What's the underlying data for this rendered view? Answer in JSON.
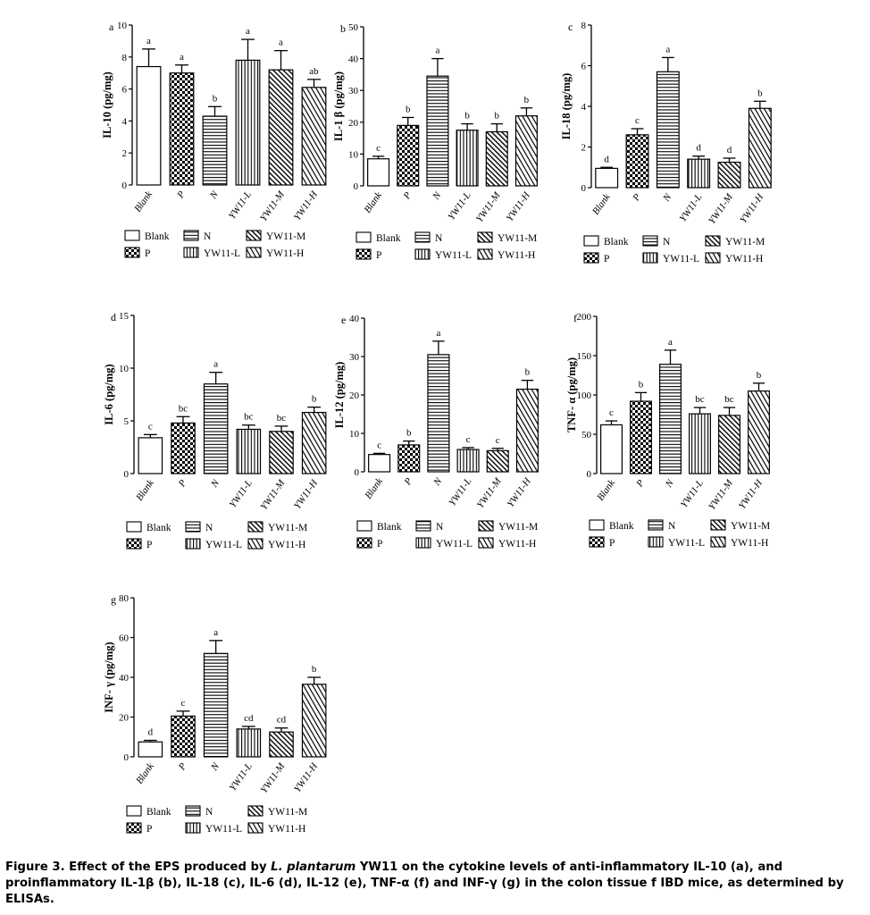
{
  "caption": {
    "label": "Figure 3.",
    "part1": " Effect of the EPS produced by ",
    "species": "L. plantarum",
    "part2": " YW11 on the cytokine levels of anti-inflammatory IL-10 (a), and proinflammatory IL-1β (b), IL-18 (c), IL-6 (d), IL-12 (e), TNF-α (f) and INF-γ (g) in the colon tissue f IBD mice, as determined by ELISAs."
  },
  "legend_items": [
    {
      "label": "Blank",
      "pattern": "blank"
    },
    {
      "label": "P",
      "pattern": "checker"
    },
    {
      "label": "N",
      "pattern": "hlines"
    },
    {
      "label": "YW11-L",
      "pattern": "vlines"
    },
    {
      "label": "YW11-M",
      "pattern": "diag"
    },
    {
      "label": "YW11-H",
      "pattern": "diag2"
    }
  ],
  "chart_data": [
    {
      "panel": "a",
      "type": "bar",
      "ylabel": "IL-10 (pg/mg)",
      "ylim": [
        0,
        10
      ],
      "yticks": [
        0,
        2,
        4,
        6,
        8,
        10
      ],
      "categories": [
        "Blank",
        "P",
        "N",
        "YW11-L",
        "YW11-M",
        "YW11-H"
      ],
      "values": [
        7.4,
        7.0,
        4.3,
        7.8,
        7.2,
        6.1
      ],
      "errors": [
        1.1,
        0.5,
        0.6,
        1.3,
        1.2,
        0.5
      ],
      "letters": [
        "a",
        "a",
        "b",
        "a",
        "a",
        "ab"
      ]
    },
    {
      "panel": "b",
      "type": "bar",
      "ylabel": "IL-1 β (pg/mg)",
      "ylim": [
        0,
        50
      ],
      "yticks": [
        0,
        10,
        20,
        30,
        40,
        50
      ],
      "categories": [
        "Blank",
        "P",
        "N",
        "YW11-L",
        "YW11-M",
        "YW11-H"
      ],
      "values": [
        8.5,
        19,
        34.5,
        17.5,
        17,
        22
      ],
      "errors": [
        0.8,
        2.5,
        5.5,
        2.0,
        2.5,
        2.5
      ],
      "letters": [
        "c",
        "b",
        "a",
        "b",
        "b",
        "b"
      ]
    },
    {
      "panel": "c",
      "type": "bar",
      "ylabel": "IL-18 (pg/mg)",
      "ylim": [
        0,
        8
      ],
      "yticks": [
        0,
        2,
        4,
        6,
        8
      ],
      "categories": [
        "Blank",
        "P",
        "N",
        "YW11-L",
        "YW11-M",
        "YW11-H"
      ],
      "values": [
        0.95,
        2.6,
        5.7,
        1.4,
        1.25,
        3.9
      ],
      "errors": [
        0.05,
        0.3,
        0.7,
        0.15,
        0.2,
        0.35
      ],
      "letters": [
        "d",
        "c",
        "a",
        "d",
        "d",
        "b"
      ]
    },
    {
      "panel": "d",
      "type": "bar",
      "ylabel": "IL-6 (pg/mg)",
      "ylim": [
        0,
        15
      ],
      "yticks": [
        0,
        5,
        10,
        15
      ],
      "categories": [
        "Blank",
        "P",
        "N",
        "YW11-L",
        "YW11-M",
        "YW11-H"
      ],
      "values": [
        3.4,
        4.8,
        8.5,
        4.2,
        4.0,
        5.8
      ],
      "errors": [
        0.3,
        0.6,
        1.1,
        0.4,
        0.5,
        0.5
      ],
      "letters": [
        "c",
        "bc",
        "a",
        "bc",
        "bc",
        "b"
      ]
    },
    {
      "panel": "e",
      "type": "bar",
      "ylabel": "IL-12 (pg/mg)",
      "ylim": [
        0,
        40
      ],
      "yticks": [
        0,
        10,
        20,
        30,
        40
      ],
      "categories": [
        "Blank",
        "P",
        "N",
        "YW11-L",
        "YW11-M",
        "YW11-H"
      ],
      "values": [
        4.5,
        7.0,
        30.5,
        5.8,
        5.5,
        21.5
      ],
      "errors": [
        0.3,
        1.0,
        3.5,
        0.5,
        0.6,
        2.3
      ],
      "letters": [
        "c",
        "b",
        "a",
        "c",
        "c",
        "b"
      ]
    },
    {
      "panel": "f",
      "type": "bar",
      "ylabel": "TNF- α  (pg/mg)",
      "ylim": [
        0,
        200
      ],
      "yticks": [
        0,
        50,
        100,
        150,
        200
      ],
      "categories": [
        "Blank",
        "P",
        "N",
        "YW11-L",
        "YW11-M",
        "YW11-H"
      ],
      "values": [
        62,
        92,
        139,
        76,
        74,
        105
      ],
      "errors": [
        5,
        11,
        18,
        8,
        10,
        10
      ],
      "letters": [
        "c",
        "b",
        "a",
        "bc",
        "bc",
        "b"
      ]
    },
    {
      "panel": "g",
      "type": "bar",
      "ylabel": "INF- γ  (pg/mg)",
      "ylim": [
        0,
        80
      ],
      "yticks": [
        0,
        20,
        40,
        60,
        80
      ],
      "categories": [
        "Blank",
        "P",
        "N",
        "YW11-L",
        "YW11-M",
        "YW11-H"
      ],
      "values": [
        7.5,
        20.5,
        52,
        14,
        12.5,
        36.5
      ],
      "errors": [
        0.8,
        2.5,
        6.5,
        1.3,
        2.0,
        3.5
      ],
      "letters": [
        "d",
        "c",
        "a",
        "cd",
        "cd",
        "b"
      ]
    }
  ]
}
